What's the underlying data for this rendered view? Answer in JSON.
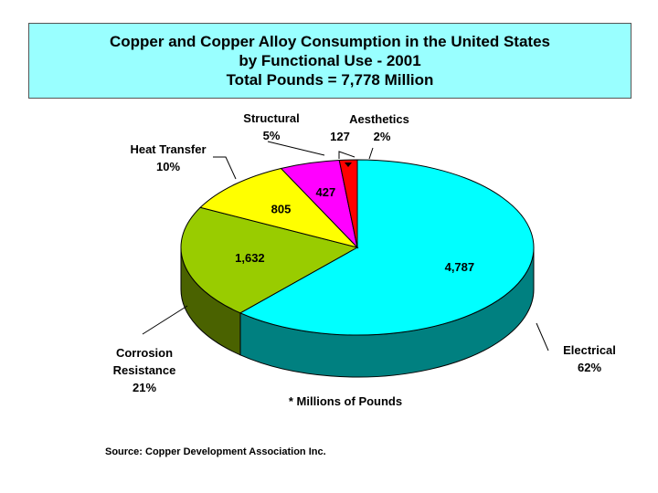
{
  "chart_data": {
    "type": "pie",
    "title_lines": [
      "Copper and Copper Alloy Consumption in the United States",
      "by Functional Use - 2001",
      "Total Pounds = 7,778 Million"
    ],
    "slices": [
      {
        "name_lines": [
          "Electrical"
        ],
        "value": 4787,
        "value_label": "4,787",
        "percent_label": "62%",
        "color": "#00ffff",
        "side_color": "#008080"
      },
      {
        "name_lines": [
          "Corrosion",
          "Resistance"
        ],
        "value": 1632,
        "value_label": "1,632",
        "percent_label": "21%",
        "color": "#99cc00",
        "side_color": "#4a6200"
      },
      {
        "name_lines": [
          "Heat Transfer"
        ],
        "value": 805,
        "value_label": "805",
        "percent_label": "10%",
        "color": "#ffff00",
        "side_color": "#808000"
      },
      {
        "name_lines": [
          "Structural"
        ],
        "value": 427,
        "value_label": "427",
        "percent_label": "5%",
        "color": "#ff00ff",
        "side_color": "#800080"
      },
      {
        "name_lines": [
          "Aesthetics"
        ],
        "value": 127,
        "value_label": "127",
        "percent_label": "2%",
        "color": "#ff0000",
        "side_color": "#800000"
      }
    ],
    "unit_note": "* Millions of Pounds",
    "source": "Source: Copper Development Association Inc."
  }
}
